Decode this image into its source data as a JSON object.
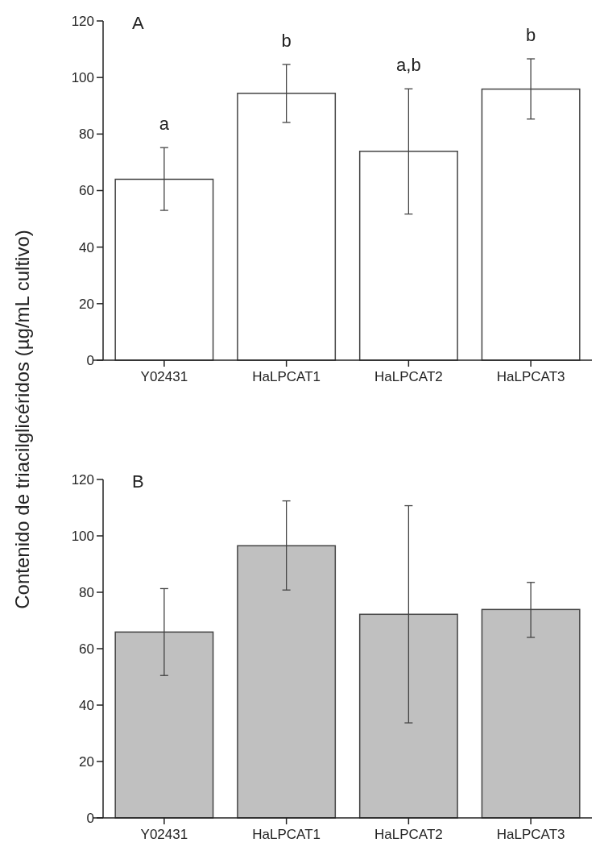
{
  "chart_data": [
    {
      "type": "bar",
      "title": "A",
      "ylabel": "Contenido de triacilglicéridos (µg/mL cultivo)",
      "categories": [
        "Y02431",
        "HaLPCAT1",
        "HaLPCAT2",
        "HaLPCAT3"
      ],
      "values": [
        64,
        94.4,
        73.9,
        95.9
      ],
      "errors": [
        [
          53,
          75.2
        ],
        [
          84.1,
          104.6
        ],
        [
          51.7,
          96
        ],
        [
          85.3,
          106.6
        ]
      ],
      "color": "#ffffff",
      "ylim": [
        0,
        120
      ],
      "yticks": [
        0,
        20,
        40,
        60,
        80,
        100,
        120
      ],
      "grid": false,
      "annotations": [
        "a",
        "b",
        "a,b",
        "b"
      ]
    },
    {
      "type": "bar",
      "title": "B",
      "categories": [
        "Y02431",
        "HaLPCAT1",
        "HaLPCAT2",
        "HaLPCAT3"
      ],
      "values": [
        65.9,
        96.5,
        72.2,
        73.9
      ],
      "errors": [
        [
          50.5,
          81.3
        ],
        [
          80.8,
          112.4
        ],
        [
          33.7,
          110.7
        ],
        [
          64,
          83.5
        ]
      ],
      "color": "#c0c0c0",
      "ylim": [
        0,
        120
      ],
      "yticks": [
        0,
        20,
        40,
        60,
        80,
        100,
        120
      ],
      "grid": false
    }
  ]
}
